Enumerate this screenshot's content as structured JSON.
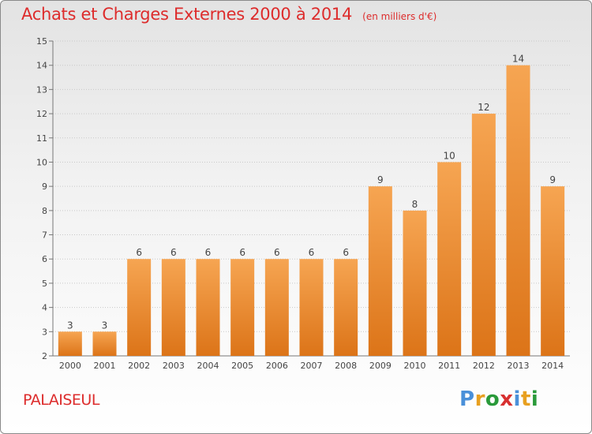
{
  "header": {
    "title": "Achats et Charges Externes 2000 à 2014",
    "unit": "(en milliers d'€)"
  },
  "footer": {
    "city": "PALAISEUL",
    "logo": {
      "letters": [
        "P",
        "r",
        "o",
        "x",
        "i",
        "t",
        "i"
      ],
      "colors": [
        "#4a90d9",
        "#e8a020",
        "#2a9a3a",
        "#d83030",
        "#4a90d9",
        "#e8a020",
        "#2a9a3a"
      ]
    }
  },
  "colors": {
    "bar_top": "#f6a552",
    "bar_bottom": "#dc7418",
    "title": "#dd2c2c"
  },
  "chart_data": {
    "type": "bar",
    "title": "Achats et Charges Externes 2000 à 2014",
    "subtitle": "(en milliers d'€)",
    "categories": [
      "2000",
      "2001",
      "2002",
      "2003",
      "2004",
      "2005",
      "2006",
      "2007",
      "2008",
      "2009",
      "2010",
      "2011",
      "2012",
      "2013",
      "2014"
    ],
    "values": [
      3,
      3,
      6,
      6,
      6,
      6,
      6,
      6,
      6,
      9,
      8,
      10,
      12,
      14,
      9
    ],
    "ylim": [
      2,
      15
    ],
    "yticks": [
      2,
      3,
      4,
      5,
      6,
      7,
      8,
      9,
      10,
      11,
      12,
      13,
      14,
      15
    ],
    "grid": true,
    "xlabel": "",
    "ylabel": ""
  }
}
